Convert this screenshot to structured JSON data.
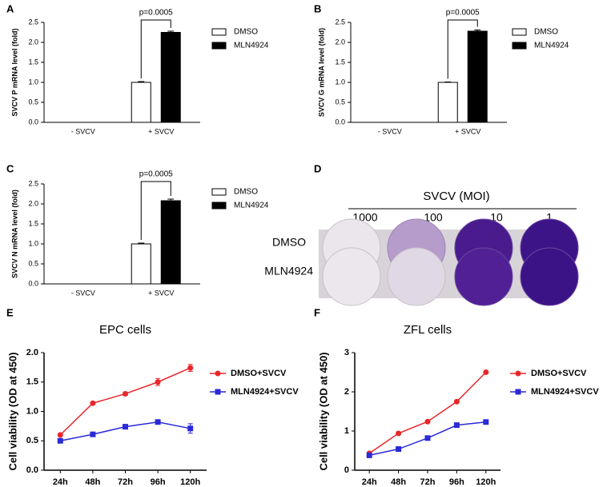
{
  "chart_data": [
    {
      "type": "bar",
      "label": "A",
      "y_label": "SVCV P mRNA level (fold)",
      "annotation": "p=0.0005",
      "legend": "right",
      "categories": [
        "- SVCV",
        "+ SVCV"
      ],
      "series": [
        {
          "name": "DMSO",
          "color": "#ffffff",
          "values": [
            0,
            1.0
          ],
          "errors": [
            0,
            0.02
          ]
        },
        {
          "name": "MLN4924",
          "color": "#000000",
          "values": [
            0,
            2.25
          ],
          "errors": [
            0,
            0.03
          ]
        }
      ],
      "ylim": [
        0,
        2.5
      ],
      "yticks": [
        {
          "value": 0,
          "label": "0.0"
        },
        0.5,
        {
          "value": 1,
          "label": "1.0"
        },
        1.5,
        {
          "value": 2,
          "label": "2.0"
        },
        2.5
      ]
    },
    {
      "type": "bar",
      "label": "B",
      "y_label": "SVCV G mRNA level (fold)",
      "annotation": "p=0.0005",
      "legend": "right",
      "categories": [
        "- SVCV",
        "+ SVCV"
      ],
      "series": [
        {
          "name": "DMSO",
          "color": "#ffffff",
          "values": [
            0,
            1.0
          ],
          "errors": [
            0,
            0.01
          ]
        },
        {
          "name": "MLN4924",
          "color": "#000000",
          "values": [
            0,
            2.28
          ],
          "errors": [
            0,
            0.03
          ]
        }
      ],
      "ylim": [
        0,
        2.5
      ],
      "yticks": [
        {
          "value": 0,
          "label": "0.0"
        },
        0.5,
        {
          "value": 1,
          "label": "1.0"
        },
        1.5,
        {
          "value": 2,
          "label": "2.0"
        },
        2.5
      ]
    },
    {
      "type": "bar",
      "label": "C",
      "y_label": "SVCV N mRNA level (fold)",
      "annotation": "p=0.0005",
      "legend": "right",
      "categories": [
        "- SVCV",
        "+ SVCV"
      ],
      "series": [
        {
          "name": "DMSO",
          "color": "#ffffff",
          "values": [
            0,
            1.0
          ],
          "errors": [
            0,
            0.02
          ]
        },
        {
          "name": "MLN4924",
          "color": "#000000",
          "values": [
            0,
            2.08
          ],
          "errors": [
            0,
            0.04
          ]
        }
      ],
      "ylim": [
        0,
        2.5
      ],
      "yticks": [
        {
          "value": 0,
          "label": "0.0"
        },
        0.5,
        {
          "value": 1,
          "label": "1.0"
        },
        1.5,
        {
          "value": 2,
          "label": "2.0"
        },
        2.5
      ]
    },
    {
      "type": "line",
      "label": "E",
      "title": "EPC cells",
      "y_label": "Cell viability (OD at 450)",
      "legend": "right",
      "categories": [
        "24h",
        "48h",
        "72h",
        "96h",
        "120h"
      ],
      "series": [
        {
          "name": "DMSO+SVCV",
          "color": "#e8262a",
          "marker": "circle",
          "values": [
            0.6,
            1.14,
            1.3,
            1.5,
            1.74
          ],
          "errors": [
            0.02,
            0.02,
            0.03,
            0.06,
            0.06
          ]
        },
        {
          "name": "MLN4924+SVCV",
          "color": "#2a2ad6",
          "marker": "square",
          "values": [
            0.5,
            0.61,
            0.74,
            0.82,
            0.71
          ],
          "errors": [
            0.03,
            0.03,
            0.02,
            0.02,
            0.08
          ]
        }
      ],
      "ylim": [
        0,
        2
      ],
      "yticks": [
        {
          "value": 0,
          "label": "0.0"
        },
        0.5,
        {
          "value": 1,
          "label": "1.0"
        },
        1.5,
        {
          "value": 2,
          "label": "2.0"
        }
      ]
    },
    {
      "type": "line",
      "label": "F",
      "title": "ZFL cells",
      "y_label": "Cell viability (OD at 450)",
      "legend": "right",
      "categories": [
        "24h",
        "48h",
        "72h",
        "96h",
        "120h"
      ],
      "series": [
        {
          "name": "DMSO+SVCV",
          "color": "#e8262a",
          "marker": "circle",
          "values": [
            0.43,
            0.94,
            1.24,
            1.75,
            2.5
          ],
          "errors": [
            0.02,
            0.03,
            0.03,
            0.03,
            0.03
          ]
        },
        {
          "name": "MLN4924+SVCV",
          "color": "#2a2ad6",
          "marker": "square",
          "values": [
            0.38,
            0.54,
            0.82,
            1.15,
            1.23
          ],
          "errors": [
            0.02,
            0.02,
            0.03,
            0.03,
            0.03
          ]
        }
      ],
      "ylim": [
        0,
        3
      ],
      "yticks": [
        0,
        1,
        2,
        3
      ]
    }
  ],
  "plate": {
    "label": "D",
    "title": "SVCV (MOI)",
    "columns": [
      "1000",
      "100",
      "10",
      "1"
    ],
    "rows": [
      "DMSO",
      "MLN4924"
    ]
  }
}
